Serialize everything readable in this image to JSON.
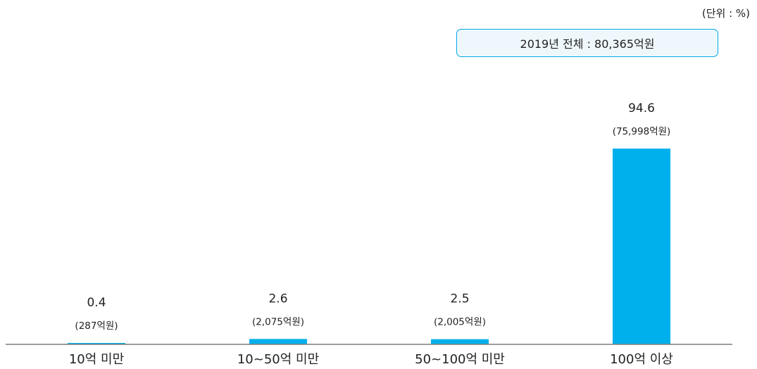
{
  "unit_label": "(단위 : %)",
  "total_box": "2019년 전체 : 80,365억원",
  "colors": {
    "bar": "#00b0ec",
    "axis": "#7f7f7f",
    "text": "#222222",
    "box_border": "#00a8e8",
    "box_fill": "#eef8fc"
  },
  "chart_data": {
    "type": "bar",
    "title": "",
    "xlabel": "",
    "ylabel": "",
    "unit": "%",
    "categories": [
      "10억 미만",
      "10~50억 미만",
      "50~100억 미만",
      "100억 이상"
    ],
    "values": [
      0.4,
      2.6,
      2.5,
      94.6
    ],
    "value_labels": [
      "0.4",
      "2.6",
      "2.5",
      "94.6"
    ],
    "amount_labels": [
      "(287억원)",
      "(2,075억원)",
      "(2,005억원)",
      "(75,998억원)"
    ],
    "ylim": [
      0,
      100
    ],
    "grid": false,
    "legend": "none"
  }
}
